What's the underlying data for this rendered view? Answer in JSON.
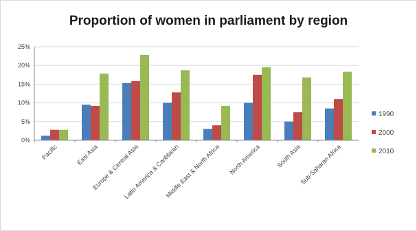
{
  "chart_data": {
    "type": "bar",
    "title": "Proportion of women in parliament by region",
    "categories": [
      "Pacific",
      "East Asia",
      "Europe & Central Asia",
      "Latin America & Caribbean",
      "Middle East & North Africa",
      "North America",
      "South Asia",
      "Sub-Saharan Africa"
    ],
    "series": [
      {
        "name": "1990",
        "color": "#4a7ebb",
        "values": [
          1.2,
          9.5,
          15.3,
          10.0,
          3.0,
          10.0,
          5.0,
          8.5
        ]
      },
      {
        "name": "2000",
        "color": "#be4b48",
        "values": [
          2.8,
          9.2,
          15.8,
          12.8,
          4.0,
          17.5,
          7.5,
          11.0
        ]
      },
      {
        "name": "2010",
        "color": "#98b954",
        "values": [
          2.8,
          17.8,
          22.8,
          18.7,
          9.2,
          19.5,
          16.8,
          18.3
        ]
      }
    ],
    "ylim": [
      0,
      25
    ],
    "yticks": [
      "0%",
      "5%",
      "10%",
      "15%",
      "20%",
      "25%"
    ],
    "grid": true,
    "legend": "right",
    "xlabel": "",
    "ylabel": ""
  }
}
